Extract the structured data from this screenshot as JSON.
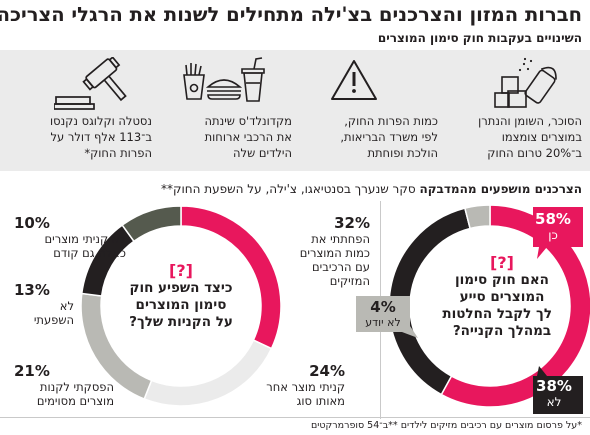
{
  "header": {
    "title": "חברות המזון והצרכנים בצ'ילה מתחילים לשנות את הרגלי הצריכה",
    "subtitle": "השינויים בעקבות חוק סימון המוצרים"
  },
  "changes": [
    {
      "icon": "salt-sugar-icon",
      "lines": [
        "הסוכר, השומן והנתרן",
        "במוצרים צומצמו",
        "ב־20% טרום החוק"
      ]
    },
    {
      "icon": "warning-icon",
      "lines": [
        "כמות הפרות החוק,",
        "לפי משרד הבריאות,",
        "הולכת ופוחתת"
      ]
    },
    {
      "icon": "fast-food-icon",
      "lines": [
        "מקדונלד'ס שינתה",
        "את הרכבי ארוחות",
        "הילדים שלה"
      ]
    },
    {
      "icon": "gavel-icon",
      "lines": [
        "נסטלה וקלוגס נקנסו",
        "ב־113 אלף דולר על",
        "הפרות החוק*"
      ]
    }
  ],
  "survey": {
    "bold": "הצרכנים מושפעים מהמדבקה",
    "rest": "סקר שנערך בסנטיאגו, צ'ילה, על השפעת החוק**"
  },
  "footnote": "*על פרסום מוצרים עם רכיבים מזיקים לילדים   **ב־54 סופרמרקטים",
  "colors": {
    "pink": "#e8175d",
    "dark": "#231f20",
    "gray": "#b9b9b4",
    "darkgray": "#545650",
    "olive": "#555a4e",
    "band": "#ebebeb"
  },
  "chart_data": [
    {
      "type": "pie",
      "style": "donut",
      "title": "האם חוק סימון המוצרים סייע לך לקבל החלטות במהלך הקנייה?",
      "categories": [
        "כן",
        "לא",
        "לא יודע"
      ],
      "values": [
        58,
        38,
        4
      ],
      "value_labels": [
        "58%",
        "38%",
        "4%"
      ],
      "colors": [
        "#e8175d",
        "#231f20",
        "#b9b9b4"
      ]
    },
    {
      "type": "pie",
      "style": "donut",
      "title": "כיצד השפיע חוק סימון המוצרים על הקניות שלך?",
      "categories": [
        "הפחתתי את כמות המוצרים עם הרכיבים המזיקים",
        "קניתי מוצר אחר מאותו סוג",
        "הפסקתי לקנות מוצרים מסוימים",
        "לא השפעתי",
        "לא קניתי מוצרים כאלה גם קודם"
      ],
      "values": [
        32,
        24,
        21,
        13,
        10
      ],
      "value_labels": [
        "32%",
        "24%",
        "21%",
        "13%",
        "10%"
      ],
      "colors": [
        "#e8175d",
        "#ebebeb",
        "#b9b9b4",
        "#231f20",
        "#555a4e"
      ]
    }
  ],
  "right_chart": {
    "qmark": "[?]",
    "q_lines": [
      "האם חוק סימון",
      "המוצרים סייע",
      "לך לקבל החלטות",
      "במהלך הקנייה?"
    ],
    "yes": {
      "pct": "58%",
      "label": "כן"
    },
    "no": {
      "pct": "38%",
      "label": "לא"
    },
    "dunno": {
      "pct": "4%",
      "label": "לא יודע"
    }
  },
  "left_chart": {
    "qmark": "[?]",
    "q_lines": [
      "כיצד השפיע חוק",
      "סימון המוצרים",
      "על הקניות שלך?"
    ],
    "items": [
      {
        "pct": "32%",
        "lines": [
          "הפחתתי את",
          "כמות המוצרים",
          "עם הרכיבים",
          "המזיקים"
        ]
      },
      {
        "pct": "24%",
        "lines": [
          "קניתי מוצר אחר",
          "מאותו סוג"
        ]
      },
      {
        "pct": "21%",
        "lines": [
          "הפסקתי לקנות",
          "מוצרים מסוימים"
        ]
      },
      {
        "pct": "13%",
        "lines": [
          "לא",
          "השפעתי"
        ]
      },
      {
        "pct": "10%",
        "lines": [
          "לא קניתי מוצרים",
          "כאלה גם קודם"
        ]
      }
    ]
  }
}
